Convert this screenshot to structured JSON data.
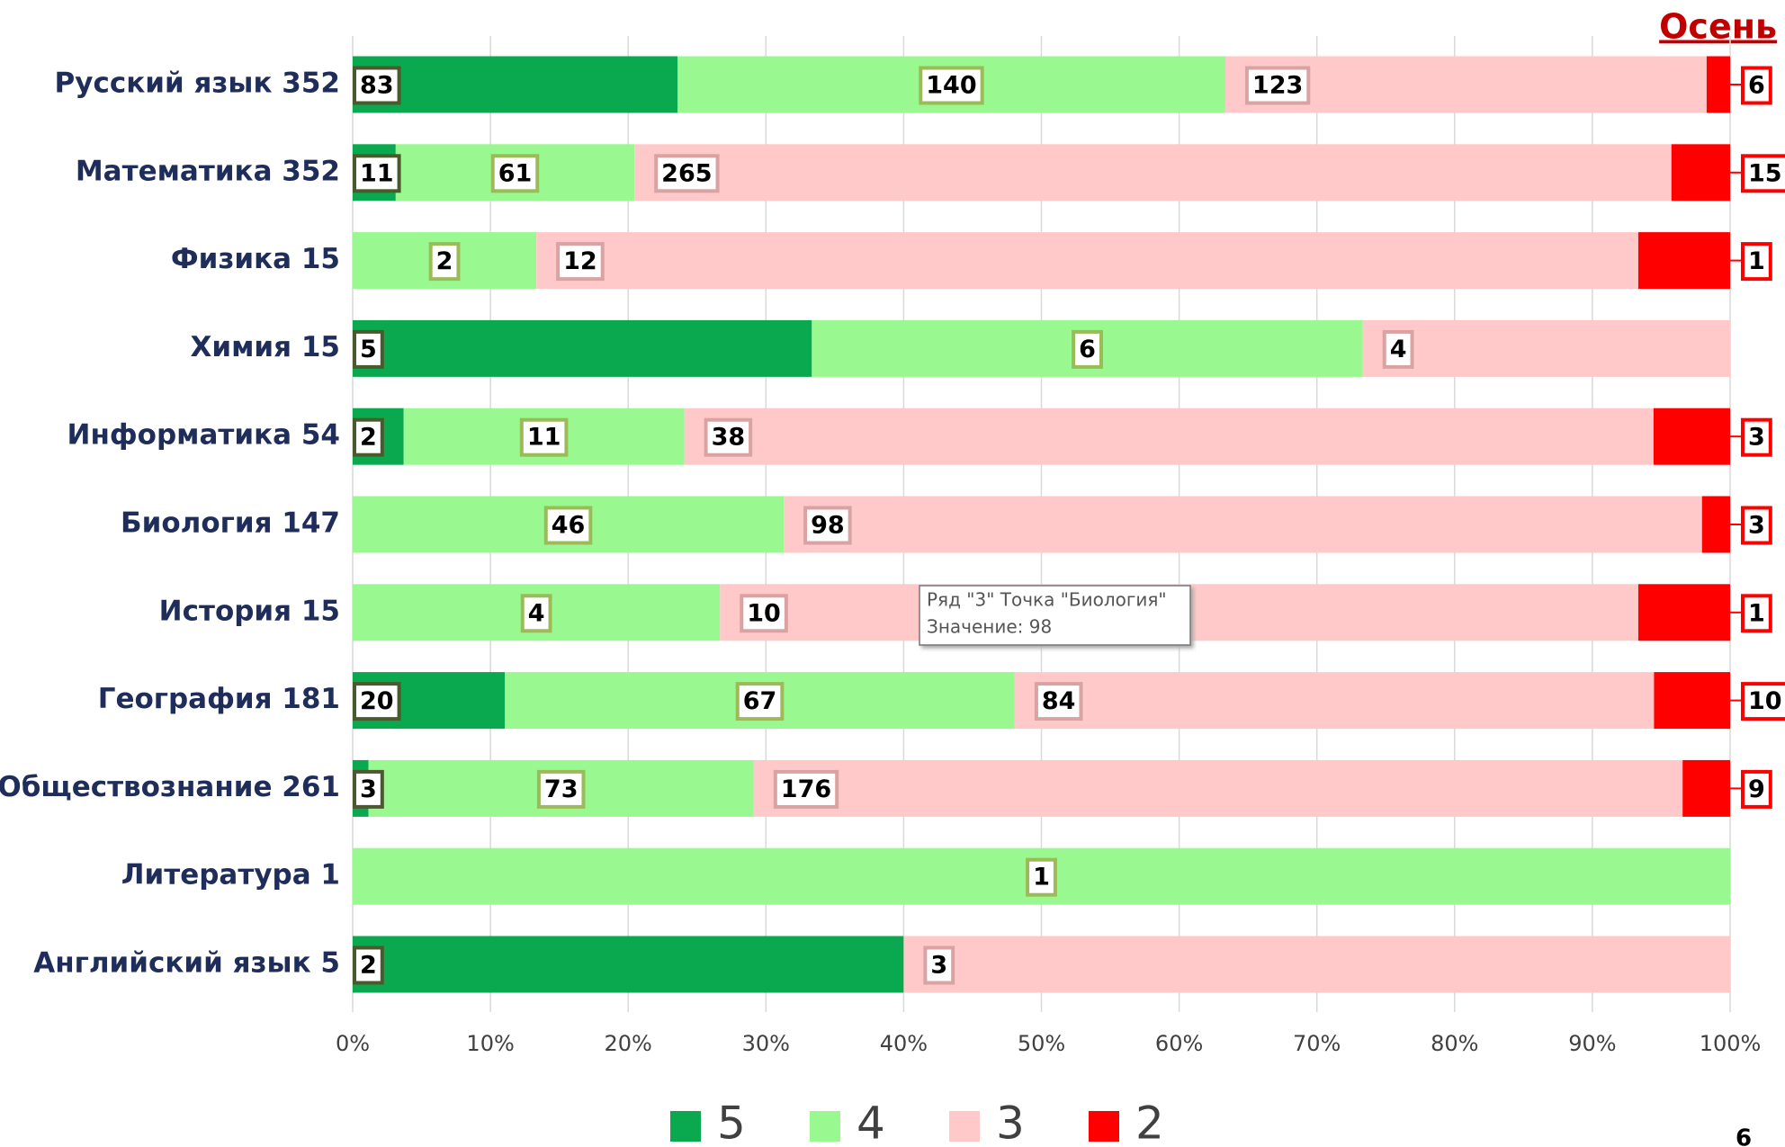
{
  "chart_data": {
    "type": "bar",
    "orientation": "horizontal",
    "stacked": "percent",
    "annotation": "Осень",
    "tooltip": {
      "line1": "Ряд \"3\" Точка \"Биология\"",
      "line2": "Значение: 98"
    },
    "page_number": "6",
    "categories": [
      "Русский язык 352",
      "Математика 352",
      "Физика 15",
      "Химия 15",
      "Информатика  54",
      "Биология  147",
      "История  15",
      "География  181",
      "Обществознание  261",
      "Литература 1",
      "Английский язык 5"
    ],
    "series": [
      {
        "name": "5",
        "color": "#0aa84f",
        "label_border": "#4b5a2c",
        "values": [
          83,
          11,
          null,
          5,
          2,
          null,
          null,
          20,
          3,
          null,
          2
        ]
      },
      {
        "name": "4",
        "color": "#99f88f",
        "label_border": "#9bbb59",
        "values": [
          140,
          61,
          2,
          6,
          11,
          46,
          4,
          67,
          73,
          1,
          null
        ]
      },
      {
        "name": "3",
        "color": "#ffc9c9",
        "label_border": "#d9a3a3",
        "values": [
          123,
          265,
          12,
          4,
          38,
          98,
          10,
          84,
          176,
          null,
          3
        ]
      },
      {
        "name": "2",
        "color": "#ff0000",
        "label_border": "#ff0000",
        "values": [
          6,
          15,
          1,
          null,
          3,
          3,
          1,
          10,
          9,
          null,
          null
        ]
      }
    ],
    "xlim": [
      0,
      100
    ],
    "xticks": [
      {
        "value": 0,
        "label": "0%"
      },
      {
        "value": 10,
        "label": "10%"
      },
      {
        "value": 20,
        "label": "20%"
      },
      {
        "value": 30,
        "label": "30%"
      },
      {
        "value": 40,
        "label": "40%"
      },
      {
        "value": 50,
        "label": "50%"
      },
      {
        "value": 60,
        "label": "60%"
      },
      {
        "value": 70,
        "label": "70%"
      },
      {
        "value": 80,
        "label": "80%"
      },
      {
        "value": 90,
        "label": "90%"
      },
      {
        "value": 100,
        "label": "100%"
      }
    ],
    "grid": true,
    "legend": "bottom"
  }
}
